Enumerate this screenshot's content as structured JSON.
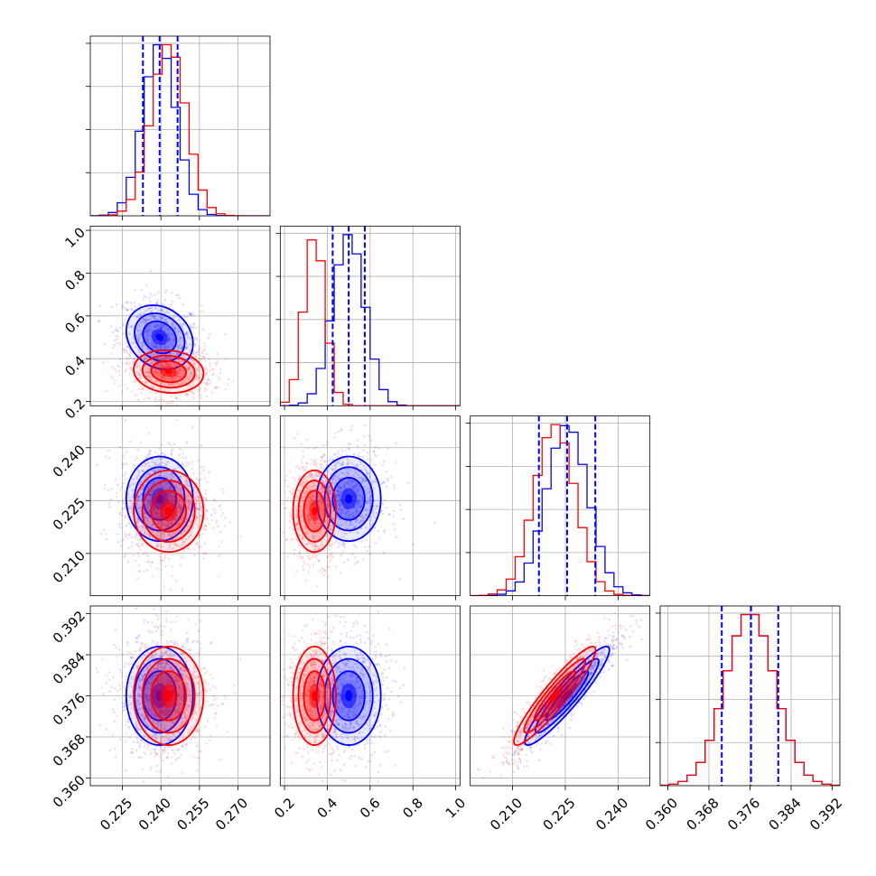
{
  "colors": {
    "series_a": "#0000ff",
    "series_b": "#ff0000",
    "grid": "#b0b0b0"
  },
  "chart_data": {
    "type": "corner",
    "params": [
      {
        "range": [
          0.2125,
          0.2825
        ],
        "ticks": [
          0.225,
          0.24,
          0.255,
          0.27
        ],
        "tick_labels": [
          "0.225",
          "0.240",
          "0.255",
          "0.270"
        ]
      },
      {
        "range": [
          0.18,
          1.02
        ],
        "ticks": [
          0.2,
          0.4,
          0.6,
          0.8,
          1.0
        ],
        "tick_labels": [
          "0.2",
          "0.4",
          "0.6",
          "0.8",
          "1.0"
        ]
      },
      {
        "range": [
          0.198,
          0.249
        ],
        "ticks": [
          0.21,
          0.225,
          0.24
        ],
        "tick_labels": [
          "0.210",
          "0.225",
          "0.240"
        ]
      },
      {
        "range": [
          0.3585,
          0.3935
        ],
        "ticks": [
          0.36,
          0.368,
          0.376,
          0.384,
          0.392
        ],
        "tick_labels": [
          "0.360",
          "0.368",
          "0.376",
          "0.384",
          "0.392"
        ]
      }
    ],
    "series": [
      {
        "color": "#0000ff",
        "mean": [
          0.2395,
          0.5,
          0.2255,
          0.376
        ],
        "std": [
          0.0065,
          0.075,
          0.006,
          0.0048
        ],
        "corr": {
          "0-1": -0.2,
          "0-2": 0.0,
          "0-3": 0.0,
          "1-2": 0.0,
          "1-3": 0.0,
          "2-3": 0.93
        },
        "quantiles": [
          [
            0.233,
            0.2395,
            0.2465
          ],
          [
            0.425,
            0.5,
            0.575
          ],
          [
            0.2175,
            0.2255,
            0.2335
          ],
          [
            0.3705,
            0.3762,
            0.3815
          ]
        ]
      },
      {
        "color": "#ff0000",
        "mean": [
          0.243,
          0.34,
          0.222,
          0.376
        ],
        "std": [
          0.0068,
          0.05,
          0.0058,
          0.0048
        ],
        "corr": {
          "0-1": -0.1,
          "0-2": 0.0,
          "0-3": 0.0,
          "1-2": 0.0,
          "1-3": 0.0,
          "2-3": 0.93
        },
        "quantiles": null
      }
    ]
  }
}
